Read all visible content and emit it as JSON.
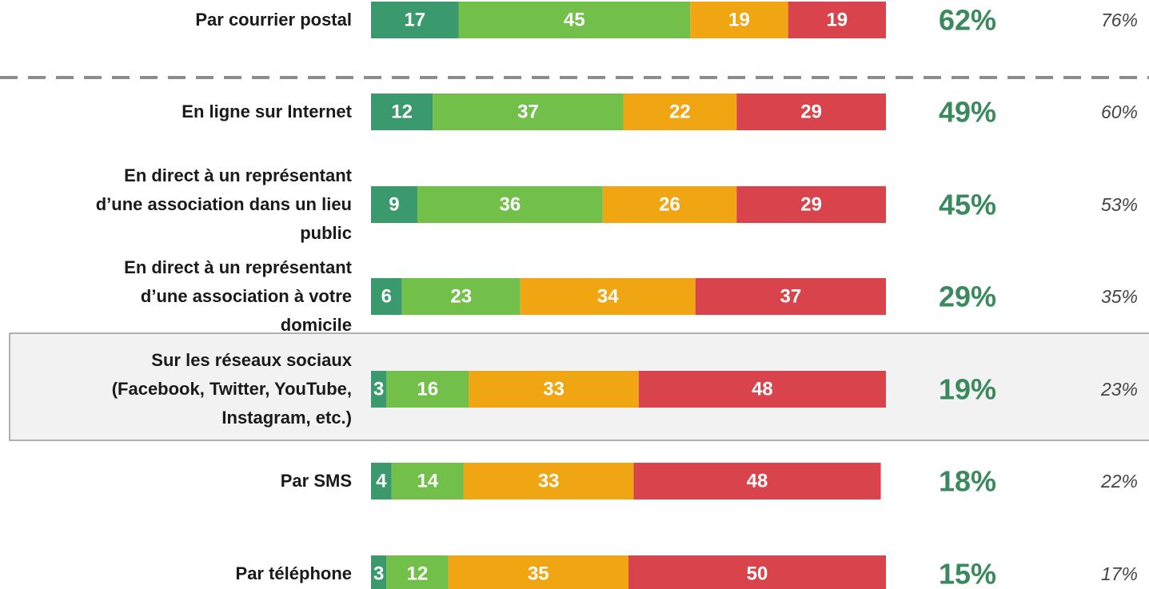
{
  "chart_data": {
    "type": "bar",
    "orientation": "horizontal",
    "stacked": true,
    "categories": [
      "Par courrier postal",
      "En ligne sur Internet",
      "En direct à un représentant\nd’une association dans un lieu\npublic",
      "En direct à un représentant\nd’une association à votre\ndomicile",
      "Sur les réseaux sociaux\n(Facebook, Twitter, YouTube,\nInstagram, etc.)",
      "Par SMS",
      "Par téléphone"
    ],
    "xlim": [
      0,
      100
    ],
    "series": [
      {
        "color": "#3a9a6e",
        "values": [
          17,
          12,
          9,
          6,
          3,
          4,
          3
        ]
      },
      {
        "color": "#72c04a",
        "values": [
          45,
          37,
          36,
          23,
          16,
          14,
          12
        ]
      },
      {
        "color": "#f0a513",
        "values": [
          19,
          22,
          26,
          34,
          33,
          33,
          35
        ]
      },
      {
        "color": "#d9434b",
        "values": [
          19,
          29,
          29,
          37,
          48,
          48,
          50
        ]
      }
    ],
    "columns": [
      {
        "color": "#3a8a5e",
        "values": [
          62,
          49,
          45,
          29,
          19,
          18,
          15
        ],
        "value_labels": [
          "62%",
          "49%",
          "45%",
          "29%",
          "19%",
          "18%",
          "15%"
        ]
      },
      {
        "color": "#444444",
        "values": [
          76,
          60,
          53,
          35,
          23,
          22,
          17
        ],
        "value_labels": [
          "76%",
          "60%",
          "53%",
          "35%",
          "23%",
          "22%",
          "17%"
        ]
      }
    ]
  }
}
